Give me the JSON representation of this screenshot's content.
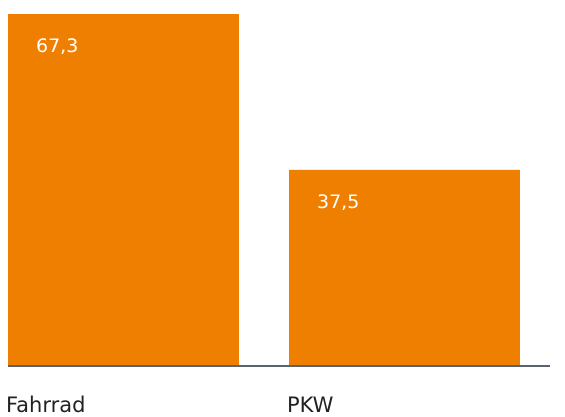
{
  "chart_data": {
    "type": "bar",
    "categories": [
      "Fahrrad",
      "PKW"
    ],
    "values": [
      67.3,
      37.5
    ],
    "value_labels": [
      "67,3",
      "37,5"
    ],
    "title": "",
    "xlabel": "",
    "ylabel": "",
    "ylim": [
      0,
      67.3
    ],
    "grid": false,
    "legend": "none",
    "bar_color": "#EE7F00",
    "axis_color": "#5A6470",
    "label_color": "#FFFFFF",
    "category_color": "#222222"
  }
}
